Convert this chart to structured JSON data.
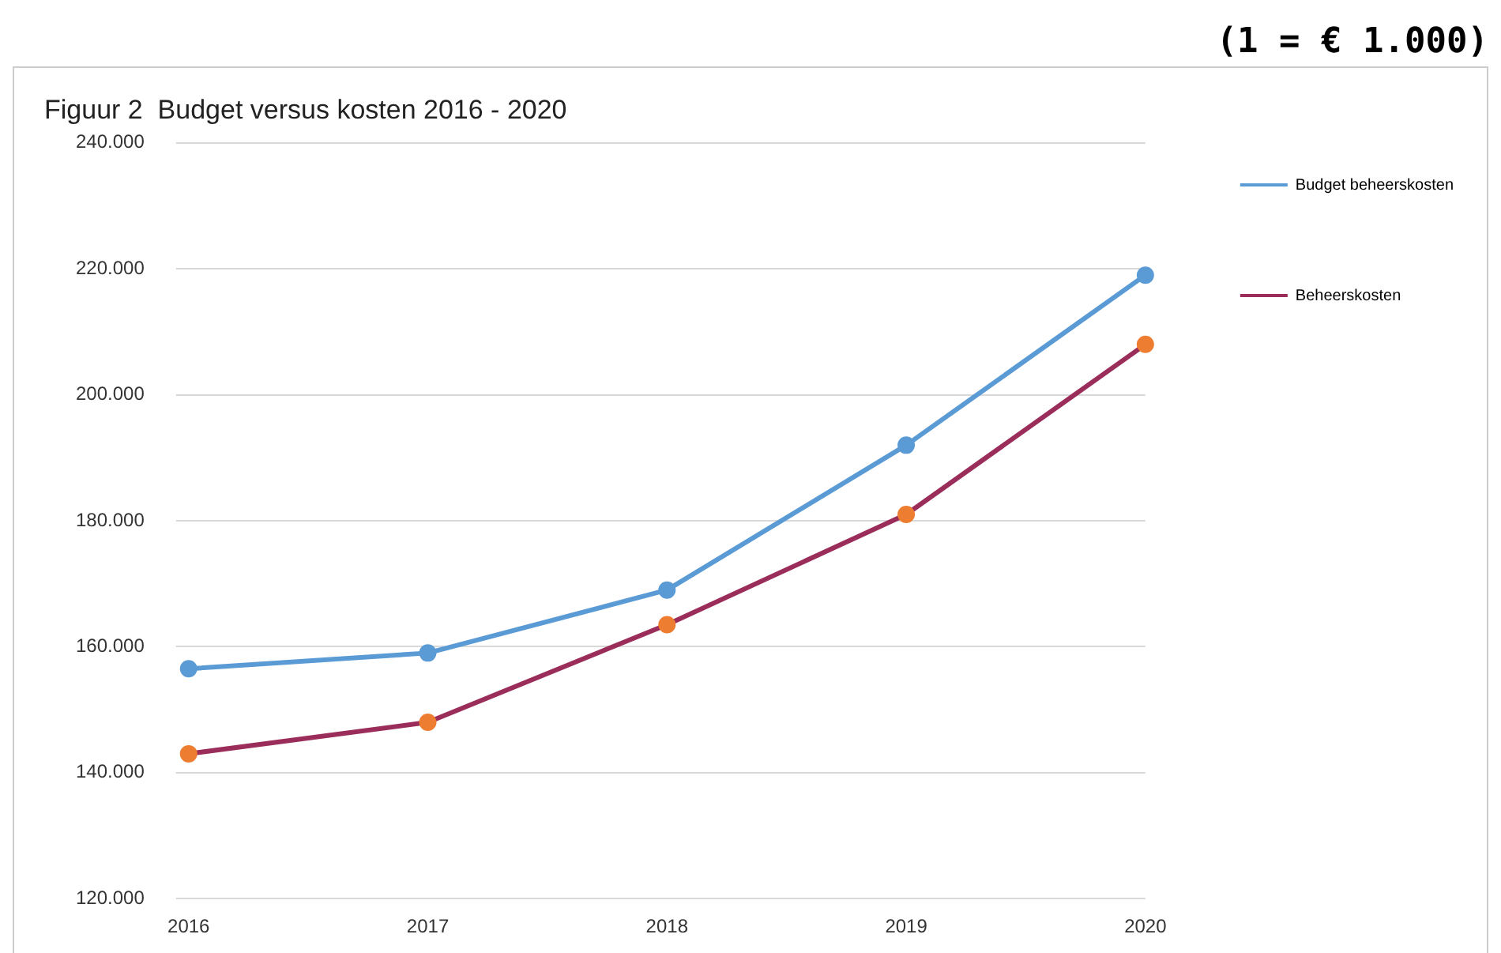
{
  "chart_data": {
    "type": "line",
    "title": "Figuur 2  Budget versus kosten 2016 - 2020",
    "annotations": [
      "(1 = € 1.000)"
    ],
    "categories": [
      "2016",
      "2017",
      "2018",
      "2019",
      "2020"
    ],
    "series": [
      {
        "name": "Budget beheerskosten",
        "color": "#5b9bd5",
        "values": [
          156.5,
          159,
          169,
          192,
          219
        ]
      },
      {
        "name": "Beheerskosten",
        "color": "#9b2d5a",
        "colors": [
          "#ed7d31",
          "#ed7d31",
          "#ed7d31",
          "#ed7d31",
          "#ed7d31"
        ],
        "values": [
          143,
          148,
          163.5,
          181,
          208
        ]
      }
    ],
    "ylim": [
      120,
      240
    ],
    "yticks": [
      {
        "value": 120,
        "label": "120.000"
      },
      {
        "value": 140,
        "label": "140.000"
      },
      {
        "value": 160,
        "label": "160.000"
      },
      {
        "value": 180,
        "label": "180.000"
      },
      {
        "value": 200,
        "label": "200.000"
      },
      {
        "value": 220,
        "label": "220.000"
      },
      {
        "value": 240,
        "label": "240.000"
      }
    ],
    "grid": "y",
    "legend": "top right",
    "marker": "circle",
    "line_style": "solid"
  }
}
